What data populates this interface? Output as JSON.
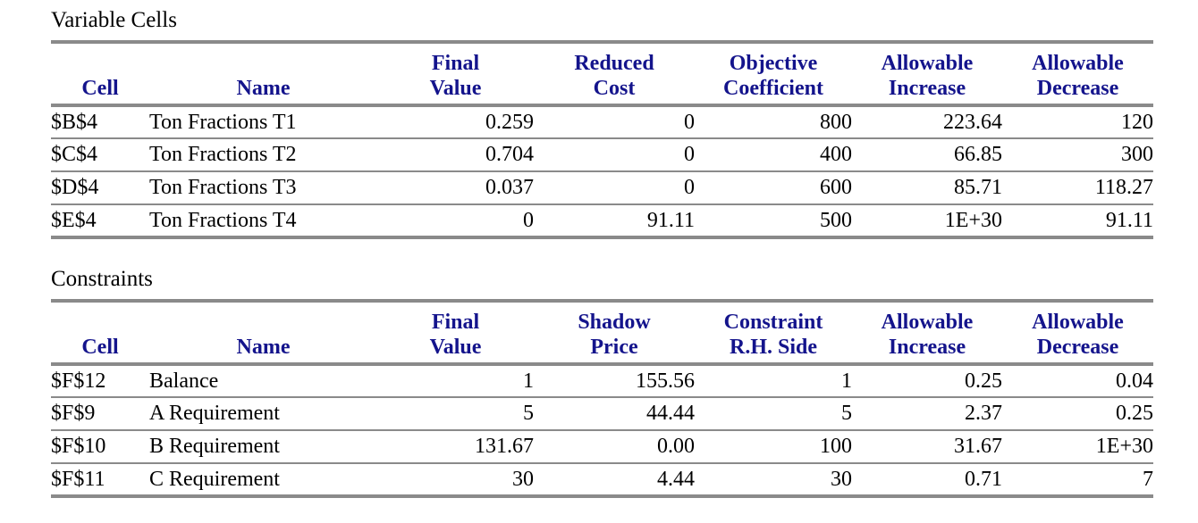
{
  "report": {
    "sections": [
      {
        "title": "Variable Cells",
        "headers": [
          {
            "line1": "",
            "line2": "Cell"
          },
          {
            "line1": "",
            "line2": "Name"
          },
          {
            "line1": "Final",
            "line2": "Value"
          },
          {
            "line1": "Reduced",
            "line2": "Cost"
          },
          {
            "line1": "Objective",
            "line2": "Coefficient"
          },
          {
            "line1": "Allowable",
            "line2": "Increase"
          },
          {
            "line1": "Allowable",
            "line2": "Decrease"
          }
        ],
        "rows": [
          [
            "$B$4",
            "Ton Fractions T1",
            "0.259",
            "0",
            "800",
            "223.64",
            "120"
          ],
          [
            "$C$4",
            "Ton Fractions T2",
            "0.704",
            "0",
            "400",
            "66.85",
            "300"
          ],
          [
            "$D$4",
            "Ton Fractions T3",
            "0.037",
            "0",
            "600",
            "85.71",
            "118.27"
          ],
          [
            "$E$4",
            "Ton Fractions T4",
            "0",
            "91.11",
            "500",
            "1E+30",
            "91.11"
          ]
        ]
      },
      {
        "title": "Constraints",
        "headers": [
          {
            "line1": "",
            "line2": "Cell"
          },
          {
            "line1": "",
            "line2": "Name"
          },
          {
            "line1": "Final",
            "line2": "Value"
          },
          {
            "line1": "Shadow",
            "line2": "Price"
          },
          {
            "line1": "Constraint",
            "line2": "R.H. Side"
          },
          {
            "line1": "Allowable",
            "line2": "Increase"
          },
          {
            "line1": "Allowable",
            "line2": "Decrease"
          }
        ],
        "rows": [
          [
            "$F$12",
            "Balance",
            "1",
            "155.56",
            "1",
            "0.25",
            "0.04"
          ],
          [
            "$F$9",
            "A Requirement",
            "5",
            "44.44",
            "5",
            "2.37",
            "0.25"
          ],
          [
            "$F$10",
            "B Requirement",
            "131.67",
            "0.00",
            "100",
            "31.67",
            "1E+30"
          ],
          [
            "$F$11",
            "C Requirement",
            "30",
            "4.44",
            "30",
            "0.71",
            "7"
          ]
        ]
      }
    ]
  },
  "colors": {
    "header_text": "#14148c",
    "body_text": "#000000",
    "rule_line": "#8a8a8a",
    "background": "#ffffff"
  }
}
